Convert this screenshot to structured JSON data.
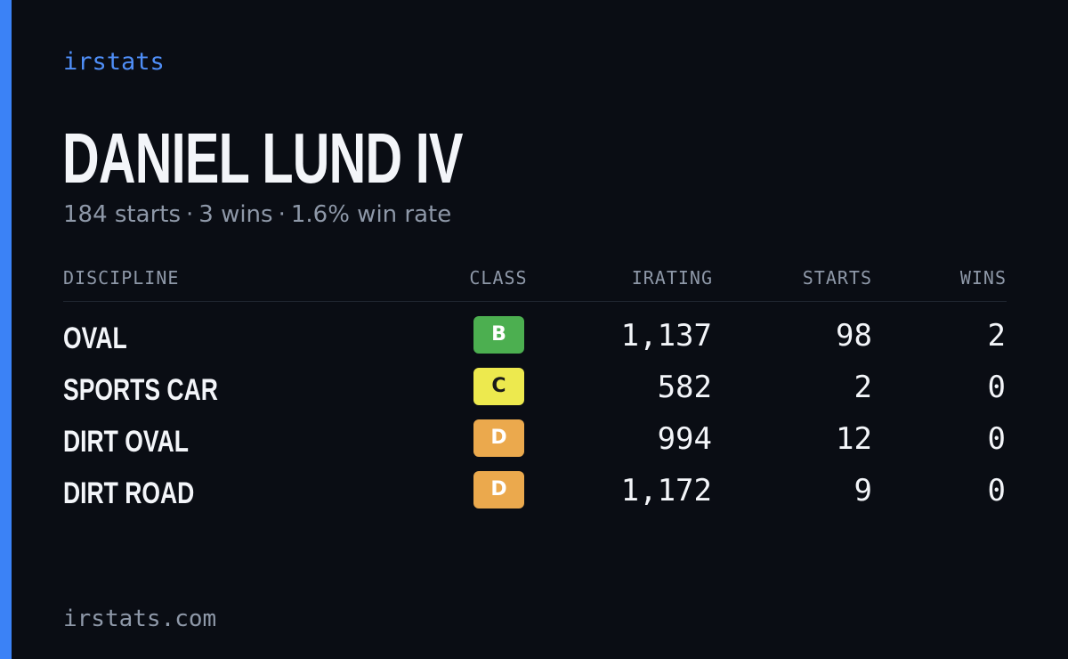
{
  "brand": "irstats",
  "driver": {
    "name": "DANIEL LUND IV",
    "starts": "184 starts",
    "wins": "3 wins",
    "win_rate": "1.6% win rate",
    "separator": "·"
  },
  "table": {
    "headers": {
      "discipline": "DISCIPLINE",
      "class": "CLASS",
      "irating": "IRATING",
      "starts": "STARTS",
      "wins": "WINS"
    },
    "rows": [
      {
        "discipline": "OVAL",
        "class": "B",
        "class_color": "#4caf50",
        "class_text_color": "#ffffff",
        "irating": "1,137",
        "starts": "98",
        "wins": "2"
      },
      {
        "discipline": "SPORTS CAR",
        "class": "C",
        "class_color": "#ede94e",
        "class_text_color": "#1a1a1a",
        "irating": "582",
        "starts": "2",
        "wins": "0"
      },
      {
        "discipline": "DIRT OVAL",
        "class": "D",
        "class_color": "#eba94d",
        "class_text_color": "#ffffff",
        "irating": "994",
        "starts": "12",
        "wins": "0"
      },
      {
        "discipline": "DIRT ROAD",
        "class": "D",
        "class_color": "#eba94d",
        "class_text_color": "#ffffff",
        "irating": "1,172",
        "starts": "9",
        "wins": "0"
      }
    ]
  },
  "footer": "irstats.com",
  "colors": {
    "background": "#0a0d14",
    "accent": "#3b82f6"
  }
}
